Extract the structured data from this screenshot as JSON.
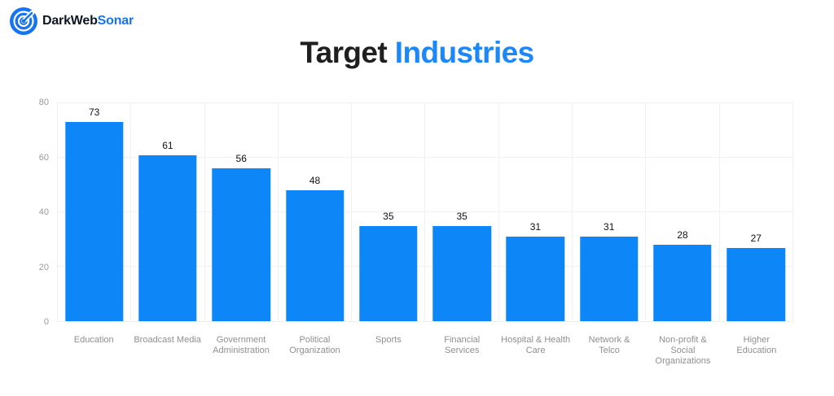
{
  "brand": {
    "name_part1": "DarkWeb",
    "name_part2": "Sonar",
    "accent_color": "#1674f2"
  },
  "title": {
    "part1": "Target",
    "part2": "Industries",
    "accent_color": "#1b87f9"
  },
  "chart_data": {
    "type": "bar",
    "title": "Target Industries",
    "categories": [
      "Education",
      "Broadcast Media",
      "Government Administration",
      "Political Organization",
      "Sports",
      "Financial Services",
      "Hospital & Health Care",
      "Network & Telco",
      "Non-profit & Social Organizations",
      "Higher Education"
    ],
    "category_labels": [
      "Education",
      "Broadcast Media",
      "Government\nAdministration",
      "Political\nOrganization",
      "Sports",
      "Financial Services",
      "Hospital & Health\nCare",
      "Network &\nTelco",
      "Non-profit & Social\nOrganizations",
      "Higher\nEducation"
    ],
    "values": [
      73,
      61,
      56,
      48,
      35,
      35,
      31,
      31,
      28,
      27
    ],
    "xlabel": "",
    "ylabel": "",
    "ylim": [
      0,
      80
    ],
    "yticks": [
      0,
      20,
      40,
      60,
      80
    ],
    "grid": true,
    "legend_position": "none",
    "bar_color": "#0d86f8",
    "value_label_color": "#111111",
    "tick_label_color": "#999999",
    "grid_color": "#f1f1f1"
  }
}
